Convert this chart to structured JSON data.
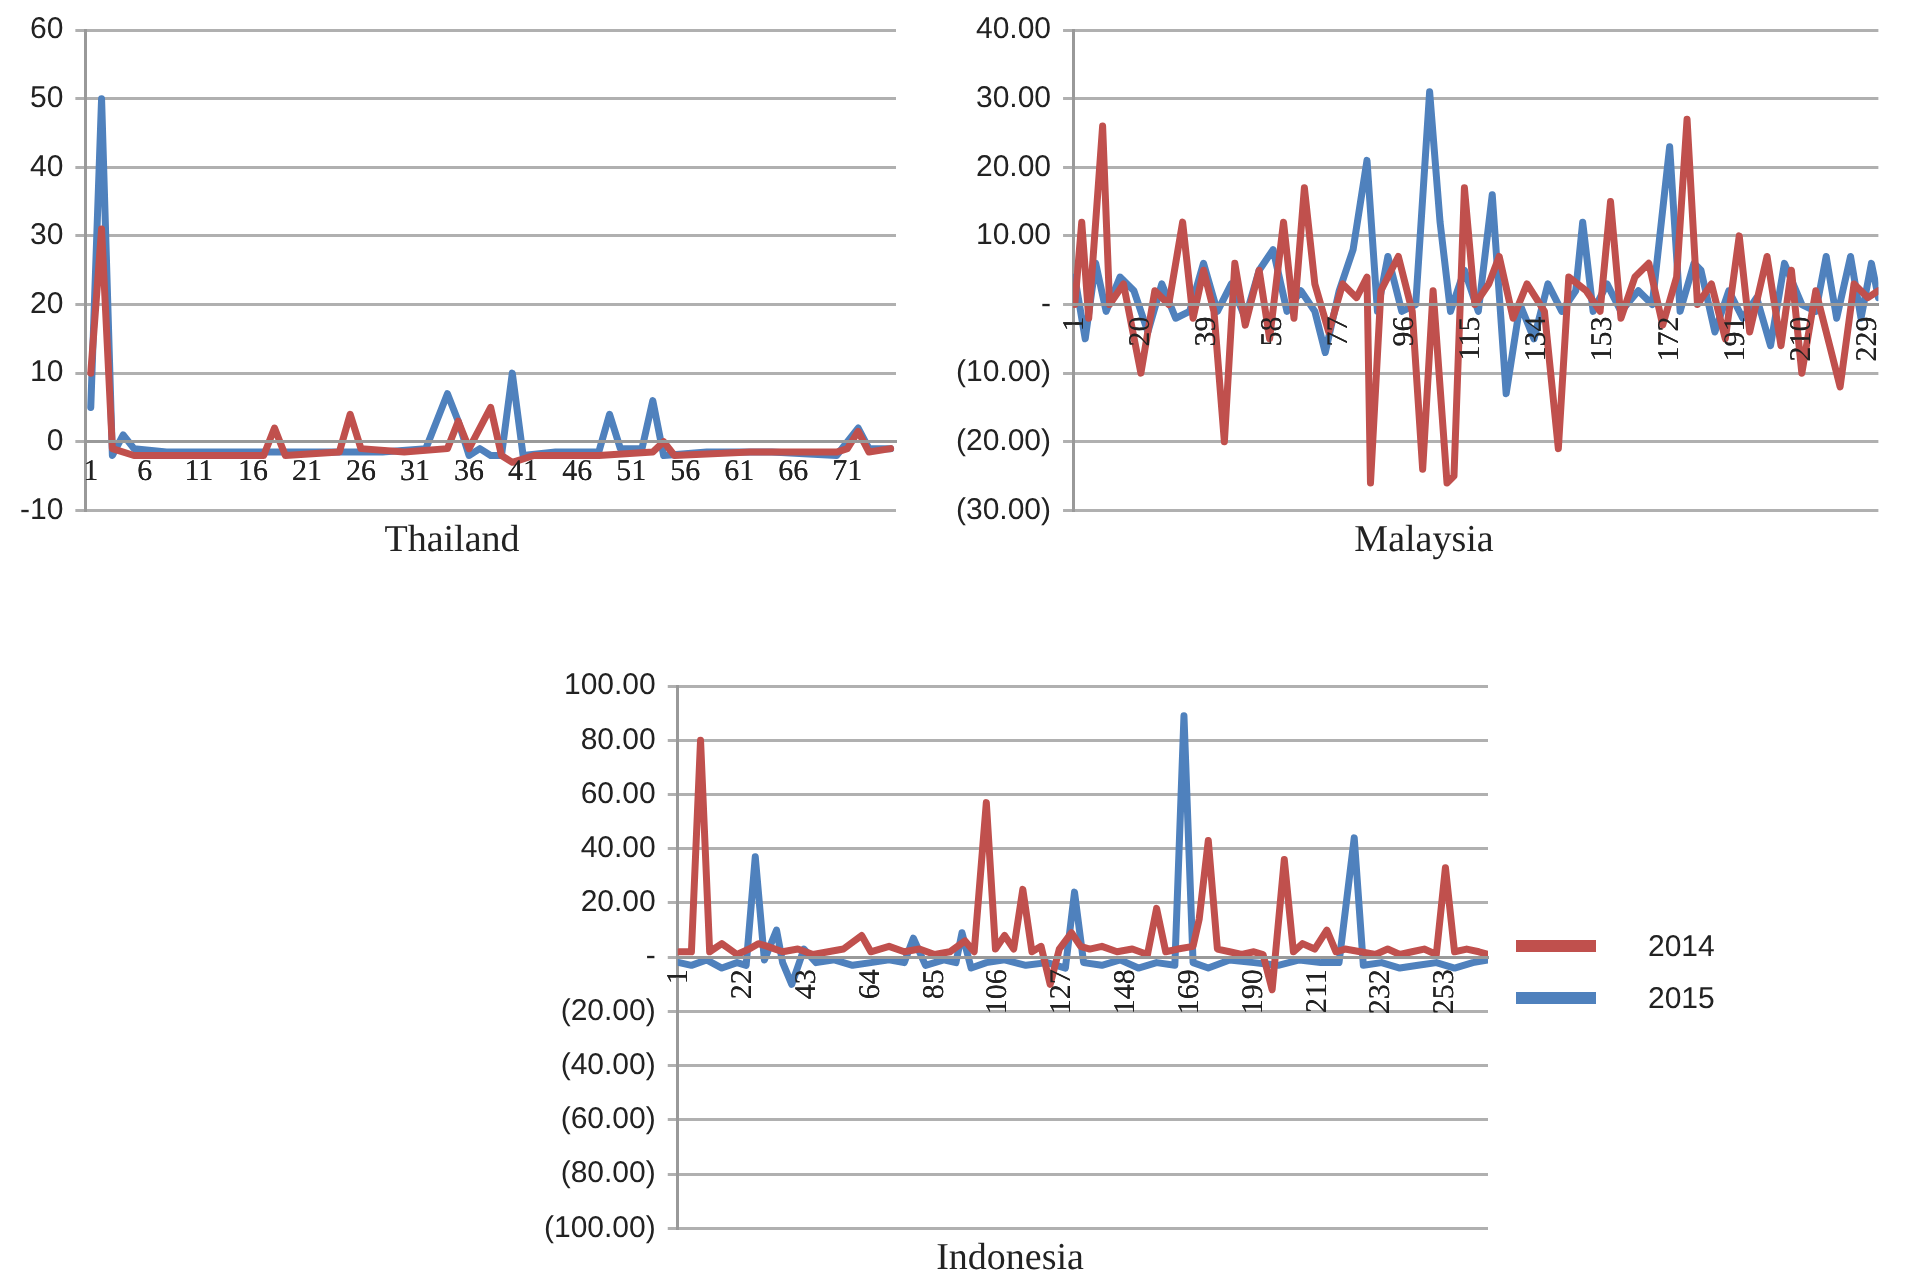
{
  "chart_data": [
    {
      "type": "line",
      "xlabel": "Thailand",
      "xlim": [
        0.5,
        75.5
      ],
      "xticks": [
        1,
        6,
        11,
        16,
        21,
        26,
        31,
        36,
        41,
        46,
        51,
        56,
        61,
        66,
        71
      ],
      "ylim": [
        -10,
        60
      ],
      "yticks": [
        -10,
        0,
        10,
        20,
        30,
        40,
        50,
        60
      ],
      "grid": "y",
      "marker": "none",
      "series": [
        {
          "color": "#c0504d",
          "x": [
            1,
            2,
            3,
            5,
            10,
            17,
            18,
            19,
            24,
            25,
            26,
            30,
            34,
            35,
            36,
            38,
            39,
            40,
            42,
            48,
            53,
            54,
            55,
            62,
            70,
            71,
            72,
            73,
            75
          ],
          "values": [
            10,
            31,
            -1,
            -2,
            -2,
            -2,
            2,
            -2,
            -1.5,
            4,
            -1,
            -1.5,
            -1,
            3,
            -1,
            5,
            -2,
            -3,
            -2,
            -2,
            -1.5,
            0,
            -2,
            -1.5,
            -1.5,
            -1,
            1.5,
            -1.5,
            -1
          ]
        },
        {
          "color": "#4f81bd",
          "x": [
            1,
            2,
            3,
            4,
            5,
            8,
            12,
            20,
            28,
            32,
            33,
            34,
            35,
            36,
            37,
            38,
            39,
            40,
            41,
            44,
            48,
            49,
            50,
            52,
            53,
            54,
            58,
            64,
            70,
            72,
            73,
            75
          ],
          "values": [
            5,
            50,
            -2,
            1,
            -1,
            -1.5,
            -1.5,
            -1.5,
            -1.5,
            -1,
            3,
            7,
            3,
            -2,
            -1,
            -2,
            -2,
            10,
            -2,
            -1.5,
            -1.5,
            4,
            -1,
            -1,
            6,
            -2,
            -1.5,
            -1.5,
            -2,
            2,
            -1,
            -1
          ]
        }
      ]
    },
    {
      "type": "line",
      "xlabel": "Malaysia",
      "xlim": [
        0.5,
        232
      ],
      "xticks": [
        1,
        20,
        39,
        58,
        77,
        96,
        115,
        134,
        153,
        172,
        191,
        210,
        229
      ],
      "ylim": [
        -30,
        40
      ],
      "yticks": [
        {
          "value": -30,
          "label": "(30.00)"
        },
        {
          "value": -20,
          "label": "(20.00)"
        },
        {
          "value": -10,
          "label": "(10.00)"
        },
        {
          "value": 0,
          "label": "-"
        },
        {
          "value": 10,
          "label": "10.00"
        },
        {
          "value": 20,
          "label": "20.00"
        },
        {
          "value": 30,
          "label": "30.00"
        },
        {
          "value": 40,
          "label": "40.00"
        }
      ],
      "grid": "y",
      "marker": "none",
      "series": [
        {
          "color": "#c0504d",
          "x": [
            1,
            3,
            5,
            9,
            11,
            15,
            20,
            24,
            28,
            32,
            35,
            38,
            41,
            44,
            47,
            50,
            54,
            57,
            61,
            64,
            67,
            70,
            74,
            78,
            82,
            85,
            86,
            89,
            94,
            98,
            101,
            104,
            108,
            110,
            113,
            116,
            120,
            123,
            127,
            131,
            136,
            140,
            143,
            148,
            152,
            155,
            158,
            162,
            166,
            170,
            174,
            177,
            180,
            184,
            188,
            192,
            195,
            200,
            204,
            207,
            210,
            214,
            218,
            221,
            225,
            229,
            232
          ],
          "values": [
            0,
            12,
            -2,
            26,
            0,
            3,
            -10,
            2,
            0,
            12,
            -2,
            5,
            -1,
            -20,
            6,
            -3,
            5,
            -5,
            12,
            -2,
            17,
            3,
            -4,
            3,
            1,
            4,
            -26,
            2,
            7,
            -1,
            -24,
            2,
            -26,
            -25,
            17,
            0,
            3,
            7,
            -2,
            3,
            -1,
            -21,
            4,
            2,
            -1,
            15,
            -2,
            4,
            6,
            -3,
            4,
            27,
            0,
            3,
            -5,
            10,
            -4,
            7,
            -6,
            5,
            -10,
            2,
            -6,
            -12,
            3,
            1,
            2
          ]
        },
        {
          "color": "#4f81bd",
          "x": [
            1,
            4,
            7,
            10,
            14,
            18,
            22,
            26,
            30,
            34,
            38,
            42,
            46,
            50,
            54,
            58,
            62,
            66,
            70,
            73,
            77,
            81,
            85,
            88,
            91,
            95,
            99,
            103,
            106,
            109,
            113,
            117,
            121,
            125,
            129,
            133,
            137,
            141,
            145,
            147,
            150,
            154,
            158,
            163,
            167,
            172,
            175,
            179,
            181,
            185,
            189,
            193,
            197,
            201,
            205,
            210,
            214,
            217,
            220,
            224,
            227,
            230,
            232
          ],
          "values": [
            4,
            -5,
            6,
            -1,
            4,
            2,
            -4,
            3,
            -2,
            -1,
            6,
            -1,
            3,
            -2,
            5,
            8,
            -1,
            2,
            -1,
            -7,
            2,
            8,
            21,
            -1,
            7,
            -1,
            0,
            31,
            12,
            -1,
            5,
            -1,
            16,
            -13,
            0,
            -5,
            3,
            -1,
            2,
            12,
            -1,
            3,
            -1,
            2,
            0,
            23,
            -1,
            6,
            5,
            -4,
            2,
            -2,
            1,
            -6,
            6,
            0,
            -1,
            7,
            -2,
            7,
            -2,
            6,
            1
          ]
        }
      ]
    },
    {
      "type": "line",
      "xlabel": "Indonesia",
      "xlim": [
        0.5,
        267
      ],
      "xticks": [
        1,
        22,
        43,
        64,
        85,
        106,
        127,
        148,
        169,
        190,
        211,
        232,
        253
      ],
      "ylim": [
        -100,
        100
      ],
      "yticks": [
        {
          "value": -100,
          "label": "(100.00)"
        },
        {
          "value": -80,
          "label": "(80.00)"
        },
        {
          "value": -60,
          "label": "(60.00)"
        },
        {
          "value": -40,
          "label": "(40.00)"
        },
        {
          "value": -20,
          "label": "(20.00)"
        },
        {
          "value": 0,
          "label": "-"
        },
        {
          "value": 20,
          "label": "20.00"
        },
        {
          "value": 40,
          "label": "40.00"
        },
        {
          "value": 60,
          "label": "60.00"
        },
        {
          "value": 80,
          "label": "80.00"
        },
        {
          "value": 100,
          "label": "100.00"
        }
      ],
      "grid": "y",
      "legend": "right",
      "marker": "none",
      "series": [
        {
          "name": "2014",
          "color": "#c0504d",
          "x": [
            1,
            5,
            8,
            11,
            15,
            20,
            24,
            27,
            30,
            35,
            40,
            45,
            50,
            55,
            61,
            64,
            70,
            75,
            80,
            85,
            90,
            95,
            98,
            102,
            105,
            108,
            111,
            114,
            117,
            120,
            123,
            126,
            130,
            133,
            136,
            140,
            145,
            150,
            155,
            158,
            161,
            165,
            170,
            172,
            175,
            178,
            182,
            186,
            190,
            193,
            196,
            200,
            203,
            206,
            210,
            214,
            217,
            220,
            225,
            230,
            234,
            238,
            242,
            246,
            250,
            253,
            256,
            260,
            264,
            267
          ],
          "values": [
            2,
            2,
            80,
            2,
            5,
            1,
            3,
            5,
            4,
            2,
            3,
            1,
            2,
            3,
            8,
            2,
            4,
            2,
            3,
            1,
            2,
            6,
            2,
            57,
            3,
            8,
            3,
            25,
            2,
            4,
            -10,
            3,
            9,
            4,
            3,
            4,
            2,
            3,
            1,
            18,
            2,
            3,
            4,
            14,
            43,
            3,
            2,
            1,
            2,
            1,
            -12,
            36,
            2,
            5,
            3,
            10,
            2,
            3,
            2,
            1,
            3,
            1,
            2,
            3,
            1,
            33,
            2,
            3,
            2,
            1
          ]
        },
        {
          "name": "2015",
          "color": "#4f81bd",
          "x": [
            1,
            5,
            10,
            15,
            20,
            23,
            26,
            29,
            33,
            35,
            38,
            42,
            46,
            52,
            58,
            64,
            70,
            75,
            78,
            82,
            88,
            92,
            94,
            97,
            102,
            108,
            115,
            122,
            128,
            131,
            134,
            140,
            146,
            152,
            158,
            164,
            167,
            170,
            175,
            182,
            190,
            198,
            205,
            212,
            218,
            223,
            226,
            232,
            238,
            244,
            250,
            256,
            262,
            267
          ],
          "values": [
            -2,
            -3,
            -1,
            -4,
            -2,
            -3,
            37,
            -1,
            10,
            -2,
            -10,
            3,
            -2,
            -1,
            -3,
            -2,
            -1,
            -2,
            7,
            -3,
            -1,
            -2,
            9,
            -4,
            -2,
            -1,
            -3,
            -2,
            -4,
            24,
            -2,
            -3,
            -1,
            -4,
            -2,
            -3,
            89,
            -2,
            -4,
            -1,
            -2,
            -3,
            -1,
            -2,
            -2,
            44,
            -3,
            -2,
            -4,
            -3,
            -2,
            -4,
            -2,
            -1
          ]
        }
      ]
    }
  ]
}
